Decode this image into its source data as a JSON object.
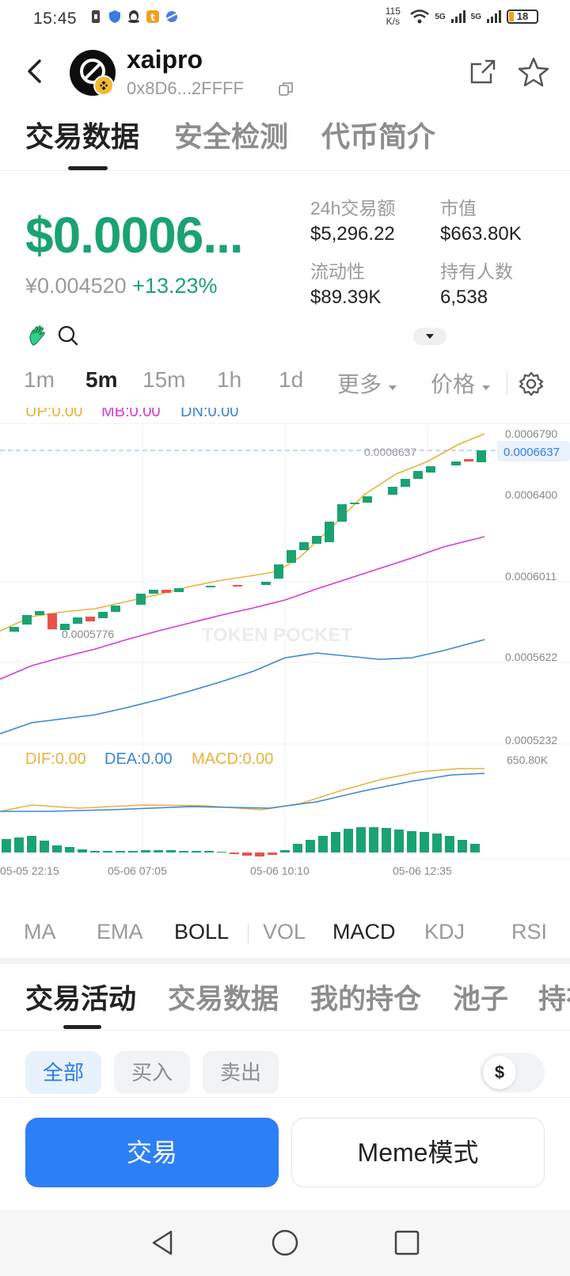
{
  "status_bar": {
    "time": "15:45",
    "net_speed_value": "115",
    "net_speed_unit": "K/s",
    "signal1": "5G",
    "signal2": "5G",
    "battery": "18"
  },
  "header": {
    "token_name": "xaipro",
    "address": "0x8D6...2FFFF"
  },
  "main_tabs": [
    "交易数据",
    "安全检测",
    "代币简介"
  ],
  "price": {
    "usd": "$0.0006...",
    "cny": "¥0.004520",
    "change": "+13.23%"
  },
  "stats": {
    "volume_label": "24h交易额",
    "volume_value": "$5,296.22",
    "mcap_label": "市值",
    "mcap_value": "$663.80K",
    "liquidity_label": "流动性",
    "liquidity_value": "$89.39K",
    "holders_label": "持有人数",
    "holders_value": "6,538"
  },
  "intervals": [
    "1m",
    "5m",
    "15m",
    "1h",
    "1d",
    "更多",
    "价格"
  ],
  "active_interval": "5m",
  "boll_legend": {
    "up": "UP:0.00",
    "mb": "MB:0.00",
    "dn": "DN:0.00"
  },
  "macd_legend": {
    "dif": "DIF:0.00",
    "dea": "DEA:0.00",
    "macd": "MACD:0.00"
  },
  "chart_labels": {
    "y_ticks": [
      "0.0006790",
      "0.0006400",
      "0.0006011",
      "0.0005622",
      "0.0005232"
    ],
    "current_price": "0.0006637",
    "current_price_line": "0.0006637",
    "low_marker": "0.0005776",
    "macd_max": "650.80K",
    "x_ticks": [
      "05-05 22:15",
      "05-06 07:05",
      "05-06 10:10",
      "05-06 12:35"
    ],
    "watermark": "TOKEN POCKET"
  },
  "colors": {
    "up": "#1aa370",
    "down": "#e8534a",
    "boll_up": "#e8b33a",
    "boll_mb": "#d63bd6",
    "boll_dn": "#3a86d6",
    "accent_blue": "#2d7ff5"
  },
  "indicator_tabs": [
    "MA",
    "EMA",
    "BOLL",
    "VOL",
    "MACD",
    "KDJ",
    "RSI"
  ],
  "activity_tabs": [
    "交易活动",
    "交易数据",
    "我的持仓",
    "池子",
    "持有"
  ],
  "filters": [
    "全部",
    "买入",
    "卖出"
  ],
  "currency_symbol": "$",
  "buttons": {
    "trade": "交易",
    "meme": "Meme模式"
  }
}
